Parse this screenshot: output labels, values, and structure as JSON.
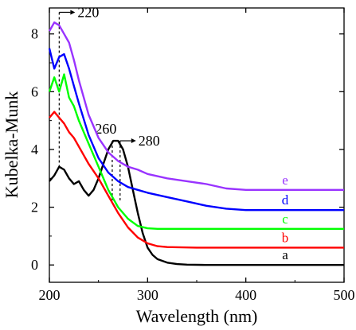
{
  "chart_data": {
    "type": "line",
    "xlabel": "Wavelength (nm)",
    "ylabel": "Kubelka-Munk",
    "xlim": [
      200,
      500
    ],
    "ylim": [
      -0.6,
      8.9
    ],
    "x_ticks": [
      200,
      300,
      400,
      500
    ],
    "y_ticks": [
      0,
      2,
      4,
      6,
      8
    ],
    "grid": false,
    "legend": "labels placed at right end of each curve",
    "series": [
      {
        "name": "a",
        "color": "#000000",
        "x": [
          200,
          205,
          210,
          215,
          220,
          225,
          230,
          235,
          240,
          245,
          250,
          255,
          260,
          265,
          270,
          275,
          280,
          285,
          290,
          295,
          300,
          305,
          310,
          320,
          330,
          340,
          360,
          400,
          450,
          500
        ],
        "y": [
          2.9,
          3.1,
          3.4,
          3.3,
          3.0,
          2.8,
          2.9,
          2.6,
          2.4,
          2.6,
          3.0,
          3.5,
          4.0,
          4.3,
          4.3,
          4.0,
          3.4,
          2.6,
          1.8,
          1.1,
          0.6,
          0.35,
          0.2,
          0.08,
          0.03,
          0.01,
          0.0,
          0.0,
          0.0,
          0.0
        ]
      },
      {
        "name": "b",
        "color": "#ff0000",
        "x": [
          200,
          205,
          210,
          215,
          220,
          225,
          230,
          240,
          250,
          260,
          270,
          280,
          290,
          300,
          310,
          320,
          350,
          400,
          450,
          500
        ],
        "y": [
          5.1,
          5.3,
          5.1,
          4.9,
          4.6,
          4.4,
          4.1,
          3.5,
          3.0,
          2.4,
          1.8,
          1.3,
          0.95,
          0.75,
          0.65,
          0.62,
          0.6,
          0.6,
          0.6,
          0.6
        ]
      },
      {
        "name": "c",
        "color": "#00ff00",
        "x": [
          200,
          205,
          210,
          215,
          220,
          225,
          230,
          240,
          250,
          260,
          270,
          280,
          290,
          300,
          310,
          330,
          350,
          400,
          450,
          500
        ],
        "y": [
          6.0,
          6.5,
          6.0,
          6.6,
          5.8,
          5.5,
          5.0,
          4.2,
          3.4,
          2.6,
          2.0,
          1.6,
          1.35,
          1.27,
          1.25,
          1.25,
          1.25,
          1.25,
          1.25,
          1.25
        ]
      },
      {
        "name": "d",
        "color": "#0000ff",
        "x": [
          200,
          205,
          210,
          215,
          220,
          225,
          230,
          240,
          250,
          260,
          270,
          280,
          290,
          300,
          320,
          340,
          360,
          380,
          400,
          450,
          500
        ],
        "y": [
          7.5,
          6.8,
          7.2,
          7.3,
          6.8,
          6.2,
          5.6,
          4.5,
          3.7,
          3.2,
          2.9,
          2.7,
          2.6,
          2.5,
          2.35,
          2.2,
          2.05,
          1.95,
          1.9,
          1.9,
          1.9
        ]
      },
      {
        "name": "e",
        "color": "#9933ff",
        "x": [
          200,
          205,
          210,
          215,
          220,
          225,
          230,
          240,
          250,
          260,
          270,
          280,
          290,
          300,
          320,
          340,
          360,
          380,
          400,
          450,
          500
        ],
        "y": [
          8.1,
          8.4,
          8.3,
          8.0,
          7.7,
          7.1,
          6.4,
          5.2,
          4.4,
          3.9,
          3.6,
          3.4,
          3.3,
          3.15,
          3.0,
          2.9,
          2.8,
          2.65,
          2.6,
          2.6,
          2.6
        ]
      }
    ],
    "annotations": [
      {
        "text": "220",
        "x": 210,
        "y_from": 3.4,
        "y_to": 8.75,
        "label_side": "right"
      },
      {
        "text": "260",
        "x": 264,
        "y_from": 4.3,
        "y_to": 2.2,
        "label_side": "above"
      },
      {
        "text": "280",
        "x": 272,
        "y_from": 4.3,
        "y_to": 2.2,
        "label_side": "right"
      }
    ]
  }
}
